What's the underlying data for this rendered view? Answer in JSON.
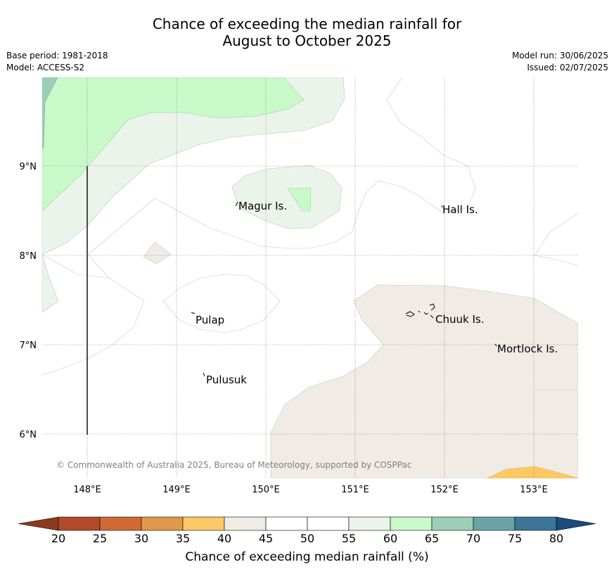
{
  "title": {
    "line1": "Chance of exceeding the median rainfall for",
    "line2": "August to October 2025"
  },
  "meta": {
    "base_period": "Base period: 1981-2018",
    "model": "Model: ACCESS-S2",
    "model_run": "Model run: 30/06/2025",
    "issued": "Issued: 02/07/2025"
  },
  "map": {
    "lat_labels": [
      "9°N",
      "8°N",
      "7°N",
      "6°N"
    ],
    "lon_labels": [
      "148°E",
      "149°E",
      "150°E",
      "151°E",
      "152°E",
      "153°E"
    ],
    "places": [
      {
        "key": "magur",
        "name": "Magur Is."
      },
      {
        "key": "hall",
        "name": "Hall Is."
      },
      {
        "key": "pulap",
        "name": "Pulap"
      },
      {
        "key": "chuuk",
        "name": "Chuuk Is."
      },
      {
        "key": "mortlock",
        "name": "Mortlock Is."
      },
      {
        "key": "pulusuk",
        "name": "Pulusuk"
      }
    ],
    "copyright": "© Commonwealth of Australia 2025, Bureau of Meteorology, supported by COSPPac"
  },
  "colorbar": {
    "label": "Chance of exceeding median rainfall (%)",
    "ticks": [
      "20",
      "25",
      "30",
      "35",
      "40",
      "45",
      "50",
      "55",
      "60",
      "65",
      "70",
      "75",
      "80"
    ],
    "colors": [
      "#b04a28",
      "#d06a35",
      "#e0984a",
      "#fcc966",
      "#f0ebe5",
      "#ffffff",
      "#ffffff",
      "#eaf4ea",
      "#c9f9c9",
      "#9ccfb8",
      "#6aa3a6",
      "#3c7597"
    ],
    "under_color": "#8b3a1e",
    "over_color": "#1a4a80"
  }
}
